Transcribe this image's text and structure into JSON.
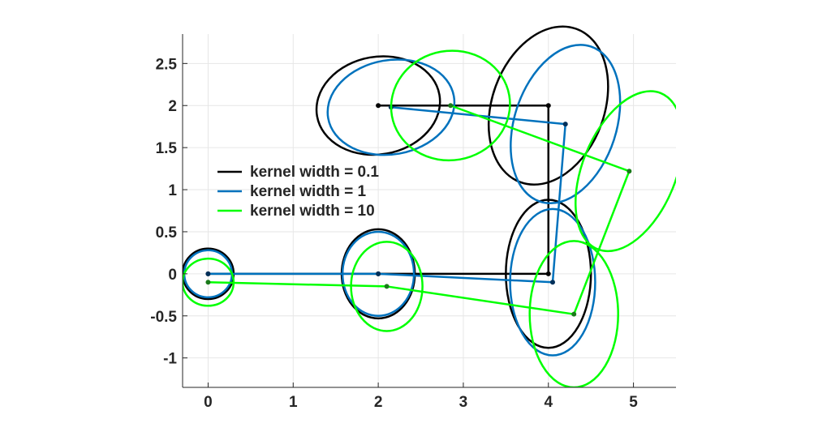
{
  "chart_data": {
    "type": "line",
    "title": "",
    "xlabel": "",
    "ylabel": "",
    "xlim": [
      -0.3,
      5.5
    ],
    "ylim": [
      -1.35,
      2.85
    ],
    "xticks": [
      0,
      1,
      2,
      3,
      4,
      5
    ],
    "xtick_labels": [
      "0",
      "1",
      "2",
      "3",
      "4",
      "5"
    ],
    "yticks": [
      -1,
      -0.5,
      0,
      0.5,
      1,
      1.5,
      2,
      2.5
    ],
    "ytick_labels": [
      "-1",
      "-0.5",
      "0",
      "0.5",
      "1",
      "1.5",
      "2",
      "2.5"
    ],
    "grid": true,
    "legend_position": "left-center",
    "series": [
      {
        "name": "kernel width = 0.1",
        "color": "#000000",
        "points": [
          [
            0,
            0
          ],
          [
            2,
            0
          ],
          [
            4,
            0
          ],
          [
            4,
            2
          ],
          [
            2,
            2
          ]
        ],
        "ellipses": [
          {
            "cx": 0,
            "cy": 0,
            "rx": 0.3,
            "ry": 0.3,
            "angle_deg": 0
          },
          {
            "cx": 2,
            "cy": 0,
            "rx": 0.43,
            "ry": 0.53,
            "angle_deg": 0
          },
          {
            "cx": 4,
            "cy": 0,
            "rx": 0.5,
            "ry": 0.88,
            "angle_deg": 0
          },
          {
            "cx": 4,
            "cy": 2,
            "rx": 0.66,
            "ry": 0.97,
            "angle_deg": 20
          },
          {
            "cx": 2,
            "cy": 2,
            "rx": 0.73,
            "ry": 0.58,
            "angle_deg": -10
          }
        ]
      },
      {
        "name": "kernel width = 1",
        "color": "#0072bd",
        "points": [
          [
            0,
            0
          ],
          [
            2,
            0
          ],
          [
            4.05,
            -0.1
          ],
          [
            4.2,
            1.78
          ],
          [
            2.15,
            1.98
          ]
        ],
        "ellipses": [
          {
            "cx": 0,
            "cy": 0,
            "rx": 0.28,
            "ry": 0.28,
            "angle_deg": 0
          },
          {
            "cx": 2,
            "cy": 0,
            "rx": 0.42,
            "ry": 0.5,
            "angle_deg": 0
          },
          {
            "cx": 4.05,
            "cy": -0.1,
            "rx": 0.5,
            "ry": 0.87,
            "angle_deg": 0
          },
          {
            "cx": 4.2,
            "cy": 1.78,
            "rx": 0.6,
            "ry": 0.97,
            "angle_deg": 18
          },
          {
            "cx": 2.15,
            "cy": 1.98,
            "rx": 0.75,
            "ry": 0.56,
            "angle_deg": -10
          }
        ]
      },
      {
        "name": "kernel width = 10",
        "color": "#00ff00",
        "points": [
          [
            0,
            -0.1
          ],
          [
            2.1,
            -0.15
          ],
          [
            4.3,
            -0.48
          ],
          [
            4.95,
            1.22
          ],
          [
            2.85,
            2.0
          ]
        ],
        "ellipses": [
          {
            "cx": 0,
            "cy": -0.1,
            "rx": 0.3,
            "ry": 0.28,
            "angle_deg": 0
          },
          {
            "cx": 2.1,
            "cy": -0.15,
            "rx": 0.42,
            "ry": 0.53,
            "angle_deg": 0
          },
          {
            "cx": 4.3,
            "cy": -0.48,
            "rx": 0.52,
            "ry": 0.87,
            "angle_deg": 0
          },
          {
            "cx": 4.95,
            "cy": 1.22,
            "rx": 0.55,
            "ry": 1.0,
            "angle_deg": 22
          },
          {
            "cx": 2.85,
            "cy": 2.0,
            "rx": 0.7,
            "ry": 0.65,
            "angle_deg": -10
          }
        ]
      }
    ]
  }
}
